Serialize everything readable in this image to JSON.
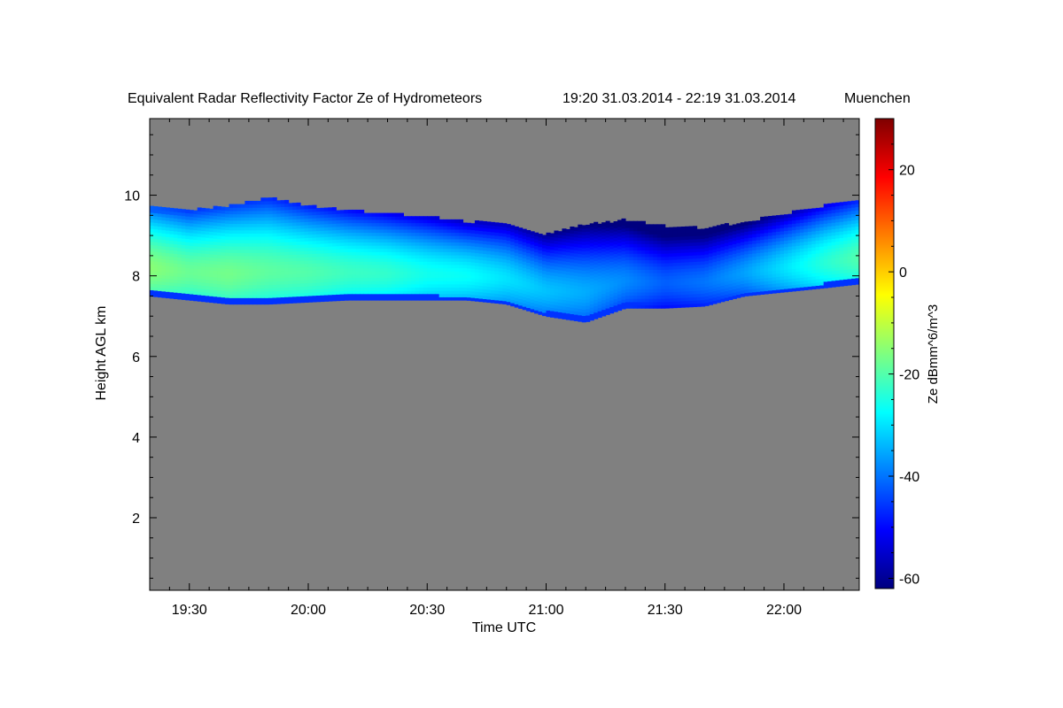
{
  "chart_data": {
    "type": "heatmap",
    "title": "Equivalent Radar Reflectivity Factor Ze of Hydrometeors",
    "time_range": "19:20 31.03.2014 - 22:19 31.03.2014",
    "location": "Muenchen",
    "xlabel": "Time UTC",
    "ylabel": "Height AGL km",
    "x_tick_labels": [
      "19:30",
      "20:00",
      "20:30",
      "21:00",
      "21:30",
      "22:00"
    ],
    "x_ticks_minutes": [
      570,
      600,
      630,
      660,
      690,
      720
    ],
    "xlim_minutes": [
      560,
      739
    ],
    "y_tick_labels": [
      "2",
      "4",
      "6",
      "8",
      "10"
    ],
    "y_ticks": [
      2,
      4,
      6,
      8,
      10
    ],
    "ylim": [
      0.2,
      11.9
    ],
    "colorbar": {
      "label": "Ze dBmm^6/m^3",
      "tick_labels": [
        "-60",
        "-40",
        "-20",
        "0",
        "20"
      ],
      "ticks": [
        -60,
        -40,
        -20,
        0,
        20
      ],
      "range": [
        -62,
        30
      ]
    },
    "no_data_color": "#808080",
    "cloud_layer": {
      "time_minutes": [
        560,
        570,
        580,
        590,
        600,
        610,
        620,
        630,
        640,
        650,
        660,
        670,
        680,
        690,
        700,
        710,
        720,
        730,
        739
      ],
      "base_km": [
        7.5,
        7.4,
        7.3,
        7.3,
        7.35,
        7.4,
        7.4,
        7.4,
        7.4,
        7.3,
        7.0,
        6.85,
        7.2,
        7.2,
        7.25,
        7.5,
        7.6,
        7.7,
        7.8
      ],
      "top_km": [
        9.7,
        9.6,
        9.7,
        9.9,
        9.7,
        9.6,
        9.5,
        9.45,
        9.3,
        9.3,
        9.0,
        9.25,
        9.35,
        9.2,
        9.15,
        9.3,
        9.5,
        9.7,
        9.85
      ],
      "core_ze_dbz": [
        -15,
        -18,
        -17,
        -19,
        -20,
        -22,
        -23,
        -26,
        -27,
        -30,
        -33,
        -35,
        -38,
        -42,
        -40,
        -36,
        -30,
        -24,
        -20
      ]
    }
  }
}
